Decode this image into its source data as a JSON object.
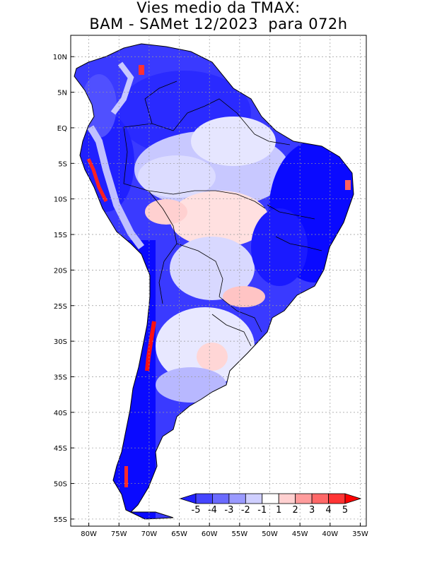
{
  "title": {
    "line1": "Vies medio da TMAX:",
    "line2": "BAM - SAMet 12/2023  para 072h"
  },
  "map": {
    "lon_range": [
      -83,
      -34
    ],
    "lat_range": [
      -56,
      13
    ],
    "x_ticks": [
      {
        "value": -80,
        "label": "80W"
      },
      {
        "value": -75,
        "label": "75W"
      },
      {
        "value": -70,
        "label": "70W"
      },
      {
        "value": -65,
        "label": "65W"
      },
      {
        "value": -60,
        "label": "60W"
      },
      {
        "value": -55,
        "label": "55W"
      },
      {
        "value": -50,
        "label": "50W"
      },
      {
        "value": -45,
        "label": "45W"
      },
      {
        "value": -40,
        "label": "40W"
      },
      {
        "value": -35,
        "label": "35W"
      }
    ],
    "y_ticks": [
      {
        "value": 10,
        "label": "10N"
      },
      {
        "value": 5,
        "label": "5N"
      },
      {
        "value": 0,
        "label": "EQ"
      },
      {
        "value": -5,
        "label": "5S"
      },
      {
        "value": -10,
        "label": "10S"
      },
      {
        "value": -15,
        "label": "15S"
      },
      {
        "value": -20,
        "label": "20S"
      },
      {
        "value": -25,
        "label": "25S"
      },
      {
        "value": -30,
        "label": "30S"
      },
      {
        "value": -35,
        "label": "35S"
      },
      {
        "value": -40,
        "label": "40S"
      },
      {
        "value": -45,
        "label": "45S"
      },
      {
        "value": -50,
        "label": "50S"
      },
      {
        "value": -55,
        "label": "55S"
      }
    ]
  },
  "colorbar": {
    "labels": [
      "-5",
      "-4",
      "-3",
      "-2",
      "-1",
      "1",
      "2",
      "3",
      "4",
      "5"
    ],
    "colors": [
      "#1f1fff",
      "#4545ff",
      "#6b6bff",
      "#9a9aff",
      "#cfcfff",
      "#ffffff",
      "#ffd0d0",
      "#ff9c9c",
      "#ff6868",
      "#ff3434",
      "#ff0000"
    ]
  },
  "palette": {
    "strong_cold": "#0a0aff",
    "cold": "#4b4bff",
    "mild_cold": "#8e8eff",
    "light_cold": "#c9c9ff",
    "neutral": "#ffffff",
    "light_warm": "#ffcccc",
    "warm": "#ff8080",
    "hot": "#ff0000"
  }
}
